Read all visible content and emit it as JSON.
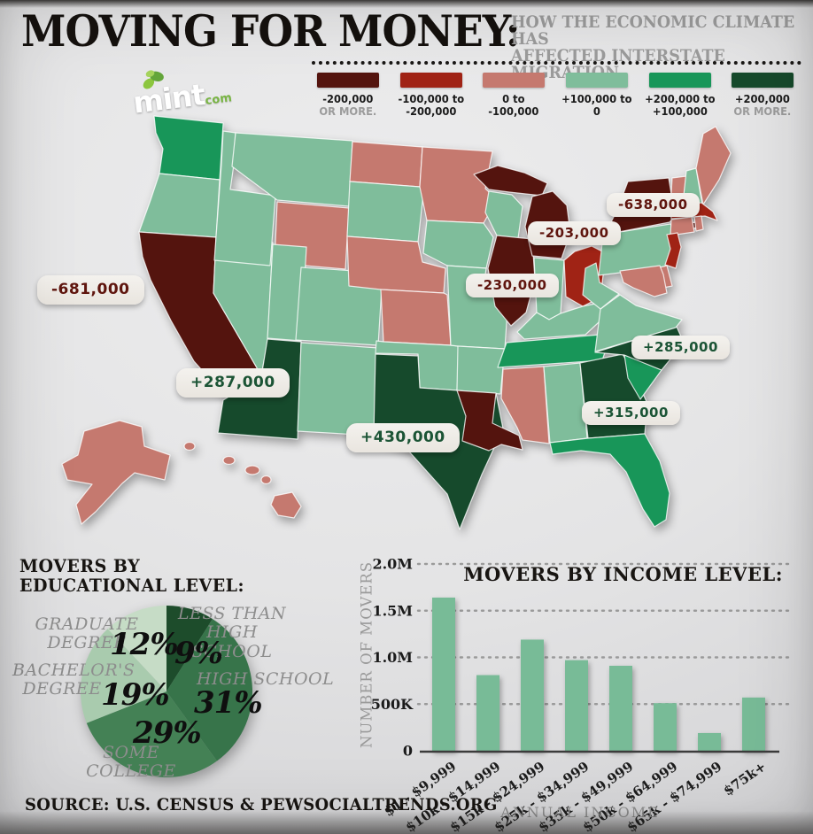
{
  "header": {
    "title": "MOVING FOR MONEY:",
    "subtitle_line1": "HOW THE ECONOMIC CLIMATE HAS",
    "subtitle_line2": "AFFECTED INTERSTATE MIGRATION",
    "logo": {
      "text": "mint",
      "suffix": "com"
    }
  },
  "legend": {
    "items": [
      {
        "line1": "-200,000",
        "line2": "OR MORE.",
        "muted2": true,
        "color": "#54140e"
      },
      {
        "line1": "-100,000 to",
        "line2": "-200,000",
        "muted2": false,
        "color": "#a02315"
      },
      {
        "line1": "0 to",
        "line2": "-100,000",
        "muted2": false,
        "color": "#c5796f"
      },
      {
        "line1": "+100,000 to",
        "line2": "0",
        "muted2": false,
        "color": "#7fbd9b"
      },
      {
        "line1": "+200,000 to",
        "line2": "+100,000",
        "muted2": false,
        "color": "#189659"
      },
      {
        "line1": "+200,000",
        "line2": "OR MORE.",
        "muted2": true,
        "color": "#164a2c"
      }
    ]
  },
  "map": {
    "categories": {
      "cat1": "#54140e",
      "cat2": "#a02315",
      "cat3": "#c5796f",
      "cat4": "#7fbd9b",
      "cat5": "#189659",
      "cat6": "#164a2c"
    },
    "states": {
      "WA": "cat5",
      "OR": "cat4",
      "CA": "cat1",
      "NV": "cat4",
      "ID": "cat4",
      "MT": "cat4",
      "WY": "cat3",
      "UT": "cat4",
      "CO": "cat4",
      "AZ": "cat6",
      "NM": "cat4",
      "ND": "cat3",
      "SD": "cat4",
      "NE": "cat3",
      "KS": "cat3",
      "OK": "cat4",
      "TX": "cat6",
      "MN": "cat3",
      "IA": "cat4",
      "MO": "cat4",
      "AR": "cat4",
      "LA": "cat1",
      "WI": "cat4",
      "IL": "cat1",
      "MI": "cat1",
      "IN": "cat4",
      "OH": "cat2",
      "KY": "cat4",
      "TN": "cat5",
      "MS": "cat3",
      "AL": "cat4",
      "GA": "cat6",
      "FL": "cat5",
      "SC": "cat5",
      "NC": "cat6",
      "VA": "cat4",
      "WV": "cat4",
      "PA": "cat4",
      "NY": "cat1",
      "VT": "cat3",
      "NH": "cat4",
      "ME": "cat3",
      "MA": "cat2",
      "CT": "cat3",
      "RI": "cat3",
      "NJ": "cat2",
      "DE": "cat3",
      "MD": "cat3",
      "AK": "cat3",
      "HI": "cat3"
    },
    "callouts": [
      {
        "state": "CA",
        "value": "-681,000"
      },
      {
        "state": "AZ",
        "value": "+287,000"
      },
      {
        "state": "TX",
        "value": "+430,000"
      },
      {
        "state": "IL",
        "value": "-230,000"
      },
      {
        "state": "MI",
        "value": "-203,000"
      },
      {
        "state": "NY",
        "value": "-638,000"
      },
      {
        "state": "NC",
        "value": "+285,000"
      },
      {
        "state": "GA",
        "value": "+315,000"
      }
    ]
  },
  "edu_section": {
    "title_line1": "MOVERS BY",
    "title_line2": "EDUCATIONAL LEVEL:"
  },
  "pie_labels": {
    "less1": "LESS THAN",
    "less2": "HIGH SCHOOL",
    "hs": "HIGH SCHOOL",
    "sc": "SOME COLLEGE",
    "ba1": "BACHELOR'S",
    "ba2": "DEGREE",
    "gd": "GRADUATE DEGREE"
  },
  "chart_data": [
    {
      "type": "pie",
      "title": "MOVERS BY EDUCATIONAL LEVEL",
      "labels": [
        "LESS THAN HIGH SCHOOL",
        "HIGH SCHOOL",
        "SOME COLLEGE",
        "BACHELOR'S DEGREE",
        "GRADUATE DEGREE"
      ],
      "values": [
        9,
        31,
        29,
        19,
        12
      ],
      "colors": [
        "#1d4c2b",
        "#37744a",
        "#448155",
        "#a9cbae",
        "#c6dcc6"
      ],
      "start_angle_deg": -90,
      "direction": "clockwise"
    },
    {
      "type": "bar",
      "title": "MOVERS BY INCOME LEVEL:",
      "categories": [
        "$1 - $9,999",
        "$10k - $14,999",
        "$15k - $24,999",
        "$25k - $34,999",
        "$35k - $49,999",
        "$50k - $64,999",
        "$65k - $74,999",
        "$75k+"
      ],
      "values": [
        1640000,
        810000,
        1190000,
        970000,
        910000,
        510000,
        190000,
        570000
      ],
      "ylabel": "NUMBER OF MOVERS",
      "xlabel": "ANNUAL INCOME",
      "yticks": [
        {
          "label": "2.0M",
          "value": 2000000
        },
        {
          "label": "1.5M",
          "value": 1500000
        },
        {
          "label": "1.0M",
          "value": 1000000
        },
        {
          "label": "500K",
          "value": 500000
        },
        {
          "label": "0",
          "value": 0
        }
      ],
      "ylim": [
        0,
        2000000
      ],
      "bar_color": "#78bb97",
      "grid": "dotted",
      "legend_position": "none"
    }
  ],
  "footer": {
    "source": "SOURCE: U.S. CENSUS & PEWSOCIALTRENDS.ORG"
  }
}
